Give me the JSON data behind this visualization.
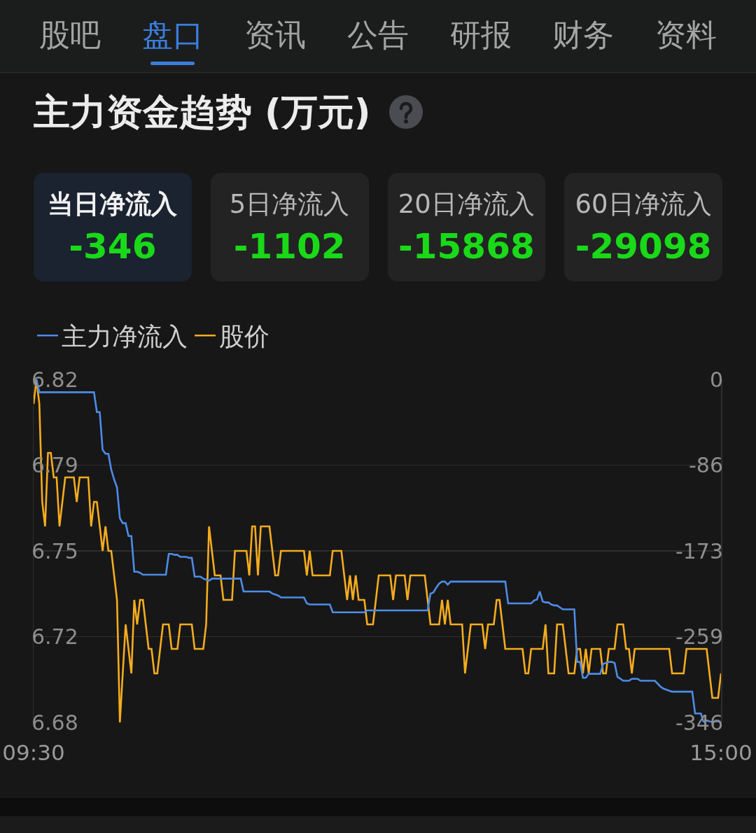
{
  "chart_data": [
    {
      "type": "other",
      "title": "主力资金趋势 (万元)",
      "annotations": [
        "股吧",
        "盘口",
        "资讯",
        "公告",
        "研报",
        "财务",
        "资料"
      ],
      "categories": [
        "当日净流入",
        "5日净流入",
        "20日净流入",
        "60日净流入"
      ],
      "values": [
        -346,
        -1102,
        -15868,
        -29098
      ],
      "data_labels": true
    },
    {
      "type": "line",
      "legend": "top left",
      "grid": "y",
      "categories": [
        "09:30",
        null,
        null,
        null,
        null,
        null,
        null,
        null,
        null,
        null,
        null,
        null,
        null,
        null,
        null,
        null,
        null,
        null,
        null,
        null,
        null,
        null,
        null,
        null,
        null,
        null,
        null,
        null,
        null,
        null,
        null,
        null,
        null,
        null,
        null,
        null,
        null,
        null,
        null,
        null,
        null,
        null,
        null,
        null,
        null,
        null,
        null,
        null,
        null,
        null,
        null,
        null,
        null,
        null,
        null,
        null,
        null,
        null,
        null,
        null,
        null,
        null,
        null,
        null,
        null,
        null,
        null,
        null,
        null,
        null,
        null,
        null,
        null,
        null,
        null,
        null,
        null,
        null,
        null,
        null,
        null,
        null,
        null,
        null,
        null,
        null,
        null,
        null,
        null,
        null,
        null,
        null,
        null,
        null,
        null,
        null,
        null,
        null,
        null,
        null,
        null,
        null,
        null,
        null,
        null,
        null,
        null,
        null,
        null,
        null,
        null,
        null,
        null,
        null,
        null,
        null,
        null,
        null,
        null,
        null,
        null,
        null,
        null,
        null,
        null,
        null,
        null,
        null,
        null,
        null,
        null,
        null,
        null,
        null,
        null,
        null,
        null,
        null,
        null,
        null,
        null,
        null,
        null,
        null,
        null,
        null,
        null,
        null,
        null,
        null,
        null,
        null,
        null,
        null,
        null,
        null,
        null,
        null,
        null,
        null,
        null,
        null,
        null,
        null,
        null,
        null,
        null,
        null,
        null,
        null,
        null,
        null,
        null,
        null,
        null,
        null,
        null,
        null,
        null,
        null,
        null,
        null,
        null,
        null,
        null,
        null,
        null,
        null,
        null,
        null,
        null,
        null,
        null,
        null,
        null,
        null,
        null,
        null,
        null,
        null,
        null,
        null,
        null,
        null,
        null,
        null,
        null,
        null,
        null,
        null,
        null,
        null,
        null,
        null,
        null,
        null,
        null,
        null,
        null,
        null,
        null,
        null,
        null,
        null,
        null,
        null,
        null,
        null,
        null,
        null,
        null,
        null,
        null,
        null,
        null,
        null,
        null,
        null,
        null,
        "15:00"
      ],
      "ylim": [
        6.68,
        6.82
      ],
      "yticks": [
        6.68,
        {
          "value": 6.715,
          "label": "6.72"
        },
        6.75,
        {
          "value": 6.785,
          "label": "6.79"
        },
        6.82
      ],
      "y2lim": [
        -346,
        0
      ],
      "y2ticks": [
        -346,
        {
          "value": -259.5,
          "label": "-259"
        },
        -173,
        {
          "value": -86.5,
          "label": "-86"
        },
        0
      ],
      "series": [
        {
          "name": "主力净流入",
          "color": "#4d8ce8",
          "axis": "y2",
          "values": [
            0,
            0,
            -13,
            -13,
            -13,
            -13,
            -13,
            -13,
            -13,
            -13,
            -13,
            -13,
            -13,
            -13,
            -13,
            -13,
            -13,
            -13,
            -13,
            -13,
            -13,
            -13,
            -33,
            -33,
            -71,
            -75,
            -75,
            -91,
            -101,
            -109,
            -140,
            -145,
            -145,
            -158,
            -158,
            -194,
            -194,
            -195,
            -197,
            -197,
            -197,
            -197,
            -197,
            -197,
            -197,
            -197,
            -197,
            -176,
            -176,
            -177,
            -177,
            -179,
            -179,
            -179,
            -180,
            -180,
            -199,
            -199,
            -199,
            -201,
            -202,
            -203,
            -201,
            -201,
            -201,
            -201,
            -201,
            -201,
            -201,
            -201,
            -201,
            -201,
            -201,
            -214,
            -214,
            -214,
            -214,
            -214,
            -214,
            -214,
            -214,
            -214,
            -214,
            -216,
            -217,
            -218,
            -220,
            -220,
            -220,
            -220,
            -220,
            -220,
            -220,
            -220,
            -220,
            -226,
            -227,
            -227,
            -227,
            -227,
            -227,
            -227,
            -227,
            -227,
            -235,
            -235,
            -235,
            -235,
            -235,
            -235,
            -235,
            -235,
            -235,
            -235,
            -235,
            -235,
            -233,
            -233,
            -233,
            -233,
            -233,
            -233,
            -233,
            -233,
            -233,
            -233,
            -233,
            -233,
            -233,
            -233,
            -233,
            -233,
            -233,
            -233,
            -233,
            -233,
            -233,
            -233,
            -216,
            -215,
            -210,
            -206,
            -204,
            -204,
            -207,
            -204,
            -204,
            -204,
            -204,
            -204,
            -204,
            -204,
            -204,
            -204,
            -204,
            -204,
            -204,
            -204,
            -204,
            -204,
            -204,
            -204,
            -204,
            -204,
            -204,
            -226,
            -226,
            -226,
            -226,
            -226,
            -226,
            -226,
            -226,
            -226,
            -223,
            -222,
            -214,
            -224,
            -225,
            -225,
            -227,
            -228,
            -228,
            -230,
            -232,
            -232,
            -232,
            -232,
            -232,
            -285,
            -285,
            -301,
            -301,
            -297,
            -297,
            -297,
            -297,
            -297,
            -287,
            -286,
            -285,
            -285,
            -286,
            -300,
            -302,
            -304,
            -304,
            -304,
            -302,
            -302,
            -302,
            -304,
            -304,
            -304,
            -304,
            -304,
            -304,
            -307,
            -310,
            -312,
            -313,
            -314,
            -315,
            -315,
            -315,
            -315,
            -315,
            -315,
            -315,
            -315,
            -337,
            -337,
            -337,
            -346,
            -344,
            -345,
            -346,
            -346,
            -346,
            -346
          ]
        },
        {
          "name": "股价",
          "color": "#f5ac1e",
          "values": [
            6.81,
            6.82,
            6.81,
            6.77,
            6.76,
            6.79,
            6.79,
            6.78,
            6.78,
            6.76,
            6.77,
            6.78,
            6.78,
            6.78,
            6.78,
            6.77,
            6.78,
            6.78,
            6.78,
            6.78,
            6.76,
            6.77,
            6.77,
            6.76,
            6.75,
            6.76,
            6.75,
            6.75,
            6.74,
            6.73,
            6.68,
            6.7,
            6.72,
            6.71,
            6.7,
            6.73,
            6.72,
            6.73,
            6.73,
            6.72,
            6.71,
            6.71,
            6.7,
            6.7,
            6.71,
            6.72,
            6.72,
            6.72,
            6.71,
            6.71,
            6.71,
            6.72,
            6.72,
            6.72,
            6.72,
            6.72,
            6.71,
            6.71,
            6.71,
            6.71,
            6.72,
            6.76,
            6.75,
            6.74,
            6.74,
            6.74,
            6.73,
            6.73,
            6.73,
            6.73,
            6.75,
            6.75,
            6.75,
            6.75,
            6.75,
            6.74,
            6.76,
            6.76,
            6.74,
            6.76,
            6.76,
            6.76,
            6.76,
            6.75,
            6.74,
            6.74,
            6.75,
            6.75,
            6.75,
            6.75,
            6.75,
            6.75,
            6.75,
            6.75,
            6.75,
            6.74,
            6.75,
            6.74,
            6.74,
            6.74,
            6.74,
            6.74,
            6.74,
            6.74,
            6.75,
            6.75,
            6.75,
            6.75,
            6.74,
            6.73,
            6.74,
            6.73,
            6.74,
            6.73,
            6.73,
            6.73,
            6.72,
            6.72,
            6.72,
            6.73,
            6.74,
            6.74,
            6.74,
            6.74,
            6.74,
            6.73,
            6.74,
            6.74,
            6.74,
            6.74,
            6.73,
            6.74,
            6.74,
            6.74,
            6.74,
            6.74,
            6.74,
            6.73,
            6.72,
            6.72,
            6.72,
            6.72,
            6.73,
            6.72,
            6.73,
            6.72,
            6.72,
            6.72,
            6.72,
            6.72,
            6.7,
            6.71,
            6.72,
            6.72,
            6.72,
            6.72,
            6.72,
            6.71,
            6.72,
            6.72,
            6.72,
            6.73,
            6.73,
            6.72,
            6.71,
            6.71,
            6.71,
            6.71,
            6.71,
            6.71,
            6.71,
            6.7,
            6.7,
            6.71,
            6.71,
            6.71,
            6.71,
            6.71,
            6.72,
            6.7,
            6.7,
            6.7,
            6.72,
            6.72,
            6.72,
            6.71,
            6.7,
            6.7,
            6.7,
            6.71,
            6.71,
            6.7,
            6.71,
            6.7,
            6.71,
            6.71,
            6.71,
            6.71,
            6.7,
            6.7,
            6.71,
            6.71,
            6.71,
            6.72,
            6.72,
            6.72,
            6.71,
            6.71,
            6.7,
            6.71,
            6.71,
            6.71,
            6.71,
            6.71,
            6.71,
            6.71,
            6.71,
            6.71,
            6.71,
            6.71,
            6.71,
            6.71,
            6.7,
            6.7,
            6.7,
            6.7,
            6.7,
            6.71,
            6.71,
            6.71,
            6.71,
            6.71,
            6.71,
            6.71,
            6.71,
            6.7,
            6.69,
            6.69,
            6.69,
            6.7
          ]
        }
      ]
    }
  ]
}
